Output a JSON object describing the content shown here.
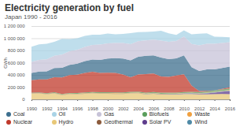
{
  "chart_data": {
    "type": "area",
    "title": "Electricity generation by fuel",
    "subtitle": "Japan 1990 - 2016",
    "y_label": "GWh",
    "stacked": true,
    "grid": true,
    "legend": "bottom",
    "x": [
      1990,
      1991,
      1992,
      1993,
      1994,
      1995,
      1996,
      1997,
      1998,
      1999,
      2000,
      2001,
      2002,
      2003,
      2004,
      2005,
      2006,
      2007,
      2008,
      2009,
      2010,
      2011,
      2012,
      2013,
      2014,
      2015,
      2016
    ],
    "xlim": [
      1990,
      2016
    ],
    "xticks": [
      1990,
      1992,
      1994,
      1996,
      1998,
      2000,
      2002,
      2004,
      2006,
      2008,
      2010,
      2012,
      2014,
      2016
    ],
    "ylim": [
      0,
      1200000
    ],
    "yticks": [
      0,
      {
        "value": 200000,
        "label": "200 000"
      },
      {
        "value": 400000,
        "label": "400 000"
      },
      {
        "value": 600000,
        "label": "600 000"
      },
      {
        "value": 800000,
        "label": "800 000"
      },
      {
        "value": 1000000,
        "label": "1 000 000"
      },
      {
        "value": 1200000,
        "label": "1 200 000"
      }
    ],
    "series": [
      {
        "name": "Coal",
        "color": "#3d6f8e",
        "values": [
          120000,
          128000,
          135000,
          150000,
          160000,
          170000,
          180000,
          195000,
          200000,
          215000,
          230000,
          240000,
          260000,
          275000,
          290000,
          300000,
          295000,
          310000,
          290000,
          280000,
          310000,
          300000,
          330000,
          350000,
          345000,
          340000,
          340000
        ]
      },
      {
        "name": "Oil",
        "color": "#a9d3e6",
        "values": [
          250000,
          255000,
          255000,
          230000,
          260000,
          200000,
          190000,
          180000,
          165000,
          160000,
          160000,
          140000,
          150000,
          180000,
          150000,
          140000,
          130000,
          160000,
          140000,
          100000,
          100000,
          160000,
          190000,
          170000,
          115000,
          100000,
          80000
        ]
      },
      {
        "name": "Gas",
        "color": "#c7c3d8",
        "values": [
          180000,
          190000,
          195000,
          200000,
          215000,
          220000,
          225000,
          230000,
          240000,
          250000,
          250000,
          250000,
          255000,
          265000,
          255000,
          250000,
          260000,
          280000,
          285000,
          285000,
          310000,
          380000,
          420000,
          420000,
          420000,
          410000,
          400000
        ]
      },
      {
        "name": "Biofuels",
        "color": "#5a9e5c",
        "values": [
          10000,
          10500,
          11000,
          11000,
          11500,
          12000,
          12500,
          13000,
          13000,
          13500,
          14000,
          14000,
          14500,
          15000,
          16000,
          16500,
          17000,
          17000,
          16000,
          16000,
          17000,
          18000,
          18000,
          20000,
          22000,
          24000,
          27000
        ]
      },
      {
        "name": "Waste",
        "color": "#f0a040",
        "values": [
          4000,
          4200,
          4400,
          4600,
          5000,
          5500,
          6000,
          6500,
          7000,
          7500,
          7500,
          7500,
          7500,
          7500,
          7500,
          7000,
          7000,
          7000,
          7000,
          7000,
          7500,
          7000,
          7000,
          7200,
          7500,
          7600,
          7800
        ]
      },
      {
        "name": "Nuclear",
        "color": "#c0392b",
        "values": [
          202000,
          213000,
          223000,
          246000,
          269000,
          291000,
          302000,
          319000,
          332000,
          317000,
          322000,
          320000,
          295000,
          240000,
          282000,
          305000,
          303000,
          264000,
          258000,
          280000,
          288000,
          102000,
          16000,
          9000,
          0,
          9000,
          18000
        ]
      },
      {
        "name": "Hydro",
        "color": "#e8c878",
        "values": [
          95000,
          97000,
          84000,
          98000,
          69000,
          84000,
          80000,
          90000,
          96000,
          90000,
          90000,
          88000,
          86000,
          96000,
          96000,
          80000,
          90000,
          78000,
          79000,
          78000,
          86000,
          86000,
          80000,
          81000,
          84000,
          87000,
          83000
        ]
      },
      {
        "name": "Geothermal",
        "color": "#8b5a3c",
        "values": [
          1700,
          1700,
          1800,
          1700,
          2000,
          3000,
          3500,
          3700,
          3500,
          3500,
          3300,
          3400,
          3400,
          3500,
          3500,
          3200,
          3000,
          3000,
          2800,
          2900,
          2700,
          2700,
          2600,
          2600,
          2600,
          2600,
          2500
        ]
      },
      {
        "name": "Solar PV",
        "color": "#5e3c8c",
        "values": [
          1,
          1,
          2,
          2,
          3,
          5,
          8,
          14,
          28,
          54,
          100,
          200,
          300,
          400,
          500,
          800,
          1000,
          1300,
          1500,
          2200,
          3500,
          5100,
          6900,
          14300,
          24500,
          35900,
          51000
        ]
      },
      {
        "name": "Wind",
        "color": "#4f8aa6",
        "values": [
          0,
          0,
          0,
          0,
          0,
          1,
          2,
          4,
          6,
          20,
          100,
          250,
          400,
          500,
          900,
          1700,
          2200,
          2600,
          2900,
          3600,
          4000,
          4600,
          4800,
          5200,
          5000,
          5200,
          6100
        ]
      }
    ]
  }
}
